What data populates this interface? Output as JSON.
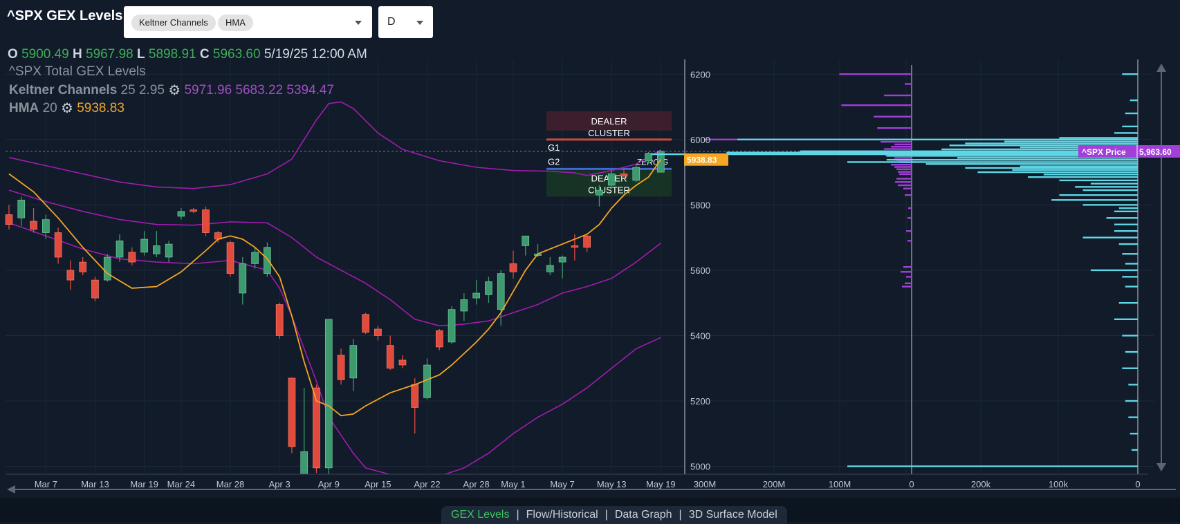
{
  "header": {
    "title": "^SPX GEX Levels",
    "indicators": [
      "Keltner Channels",
      "HMA"
    ],
    "timeframe": "D"
  },
  "ohlc": {
    "o_label": "O",
    "open": "5900.49",
    "h_label": "H",
    "high": "5967.98",
    "l_label": "L",
    "low": "5898.91",
    "c_label": "C",
    "close": "5963.60",
    "datetime": "5/19/25 12:00 AM"
  },
  "legend": {
    "gex_label": "^SPX Total GEX Levels",
    "keltner_label": "Keltner Channels",
    "keltner_params": "25 2.95",
    "keltner_values": "5971.96 5683.22 5394.47",
    "hma_label": "HMA",
    "hma_params": "20",
    "hma_value": "5938.83"
  },
  "tabs": [
    "GEX Levels",
    "Flow/Historical",
    "Data Graph",
    "3D Surface Model"
  ],
  "colors": {
    "background": "#111b2a",
    "up_candle": "#3d9a6e",
    "down_candle": "#e14a3c",
    "keltner": "#a21caf",
    "hma": "#f5a623",
    "gex_purple": "#a23fd8",
    "volume_cyan": "#5fd8e6",
    "price_badge": "#a23fd8"
  },
  "chart_data": {
    "type": "candlestick",
    "y_ticks": [
      5000,
      5200,
      5400,
      5600,
      5800,
      6000,
      6200
    ],
    "ylim": [
      4980,
      6245
    ],
    "x_ticks": [
      "Mar 7",
      "Mar 13",
      "Mar 19",
      "Mar 24",
      "Mar 28",
      "Apr 3",
      "Apr 9",
      "Apr 15",
      "Apr 22",
      "Apr 28",
      "May 1",
      "May 7",
      "May 13",
      "May 19"
    ],
    "x_tick_bars": [
      3,
      7,
      11,
      14,
      18,
      22,
      26,
      30,
      34,
      38,
      41,
      45,
      49,
      53
    ],
    "candles": [
      {
        "o": 5770,
        "h": 5800,
        "l": 5725,
        "c": 5740
      },
      {
        "o": 5760,
        "h": 5825,
        "l": 5735,
        "c": 5815
      },
      {
        "o": 5750,
        "h": 5790,
        "l": 5715,
        "c": 5725
      },
      {
        "o": 5715,
        "h": 5770,
        "l": 5695,
        "c": 5755
      },
      {
        "o": 5715,
        "h": 5730,
        "l": 5620,
        "c": 5640
      },
      {
        "o": 5600,
        "h": 5630,
        "l": 5540,
        "c": 5570
      },
      {
        "o": 5625,
        "h": 5640,
        "l": 5585,
        "c": 5595
      },
      {
        "o": 5570,
        "h": 5580,
        "l": 5505,
        "c": 5515
      },
      {
        "o": 5570,
        "h": 5650,
        "l": 5565,
        "c": 5640
      },
      {
        "o": 5640,
        "h": 5710,
        "l": 5625,
        "c": 5690
      },
      {
        "o": 5655,
        "h": 5670,
        "l": 5615,
        "c": 5625
      },
      {
        "o": 5655,
        "h": 5720,
        "l": 5645,
        "c": 5695
      },
      {
        "o": 5650,
        "h": 5720,
        "l": 5640,
        "c": 5675
      },
      {
        "o": 5640,
        "h": 5690,
        "l": 5625,
        "c": 5680
      },
      {
        "o": 5765,
        "h": 5790,
        "l": 5755,
        "c": 5780
      },
      {
        "o": 5785,
        "h": 5790,
        "l": 5775,
        "c": 5780
      },
      {
        "o": 5785,
        "h": 5795,
        "l": 5705,
        "c": 5715
      },
      {
        "o": 5715,
        "h": 5720,
        "l": 5685,
        "c": 5695
      },
      {
        "o": 5685,
        "h": 5690,
        "l": 5580,
        "c": 5590
      },
      {
        "o": 5530,
        "h": 5640,
        "l": 5495,
        "c": 5620
      },
      {
        "o": 5620,
        "h": 5670,
        "l": 5605,
        "c": 5655
      },
      {
        "o": 5590,
        "h": 5685,
        "l": 5580,
        "c": 5670
      },
      {
        "o": 5495,
        "h": 5500,
        "l": 5390,
        "c": 5400
      },
      {
        "o": 5270,
        "h": 5270,
        "l": 5040,
        "c": 5060
      },
      {
        "o": 4955,
        "h": 5240,
        "l": 4930,
        "c": 5045
      },
      {
        "o": 5240,
        "h": 5250,
        "l": 4980,
        "c": 4995
      },
      {
        "o": 4995,
        "h": 5450,
        "l": 4950,
        "c": 5450
      },
      {
        "o": 5340,
        "h": 5360,
        "l": 5250,
        "c": 5265
      },
      {
        "o": 5270,
        "h": 5390,
        "l": 5230,
        "c": 5370
      },
      {
        "o": 5465,
        "h": 5470,
        "l": 5405,
        "c": 5410
      },
      {
        "o": 5420,
        "h": 5430,
        "l": 5385,
        "c": 5400
      },
      {
        "o": 5370,
        "h": 5400,
        "l": 5295,
        "c": 5300
      },
      {
        "o": 5325,
        "h": 5340,
        "l": 5300,
        "c": 5310
      },
      {
        "o": 5250,
        "h": 5270,
        "l": 5100,
        "c": 5180
      },
      {
        "o": 5210,
        "h": 5330,
        "l": 5205,
        "c": 5310
      },
      {
        "o": 5415,
        "h": 5420,
        "l": 5355,
        "c": 5365
      },
      {
        "o": 5380,
        "h": 5490,
        "l": 5375,
        "c": 5480
      },
      {
        "o": 5475,
        "h": 5530,
        "l": 5445,
        "c": 5510
      },
      {
        "o": 5515,
        "h": 5570,
        "l": 5495,
        "c": 5530
      },
      {
        "o": 5525,
        "h": 5580,
        "l": 5500,
        "c": 5565
      },
      {
        "o": 5480,
        "h": 5600,
        "l": 5430,
        "c": 5590
      },
      {
        "o": 5620,
        "h": 5660,
        "l": 5575,
        "c": 5595
      },
      {
        "o": 5675,
        "h": 5700,
        "l": 5645,
        "c": 5705
      },
      {
        "o": 5645,
        "h": 5680,
        "l": 5640,
        "c": 5650
      },
      {
        "o": 5595,
        "h": 5640,
        "l": 5585,
        "c": 5615
      },
      {
        "o": 5625,
        "h": 5645,
        "l": 5575,
        "c": 5640
      },
      {
        "o": 5675,
        "h": 5710,
        "l": 5630,
        "c": 5670
      },
      {
        "o": 5705,
        "h": 5710,
        "l": 5655,
        "c": 5670
      },
      {
        "o": 5830,
        "h": 5860,
        "l": 5795,
        "c": 5845
      },
      {
        "o": 5860,
        "h": 5905,
        "l": 5850,
        "c": 5895
      },
      {
        "o": 5895,
        "h": 5910,
        "l": 5880,
        "c": 5888
      },
      {
        "o": 5875,
        "h": 5925,
        "l": 5870,
        "c": 5915
      },
      {
        "o": 5935,
        "h": 5962,
        "l": 5925,
        "c": 5958
      },
      {
        "o": 5900,
        "h": 5968,
        "l": 5899,
        "c": 5964
      }
    ],
    "keltner_upper": [
      [
        0,
        5945
      ],
      [
        3,
        5920
      ],
      [
        6,
        5895
      ],
      [
        9,
        5870
      ],
      [
        12,
        5855
      ],
      [
        15,
        5850
      ],
      [
        18,
        5862
      ],
      [
        21,
        5895
      ],
      [
        23,
        5940
      ],
      [
        24,
        6000
      ],
      [
        25,
        6060
      ],
      [
        26,
        6110
      ],
      [
        27,
        6115
      ],
      [
        28,
        6095
      ],
      [
        30,
        6020
      ],
      [
        32,
        5970
      ],
      [
        35,
        5935
      ],
      [
        38,
        5915
      ],
      [
        41,
        5905
      ],
      [
        44,
        5903
      ],
      [
        46,
        5898
      ],
      [
        47,
        5890
      ],
      [
        49,
        5905
      ],
      [
        51,
        5925
      ],
      [
        53,
        5968
      ]
    ],
    "keltner_middle": [
      [
        0,
        5845
      ],
      [
        3,
        5810
      ],
      [
        6,
        5780
      ],
      [
        9,
        5755
      ],
      [
        12,
        5740
      ],
      [
        15,
        5738
      ],
      [
        18,
        5748
      ],
      [
        21,
        5745
      ],
      [
        23,
        5700
      ],
      [
        25,
        5640
      ],
      [
        27,
        5600
      ],
      [
        29,
        5560
      ],
      [
        31,
        5510
      ],
      [
        33,
        5450
      ],
      [
        35,
        5430
      ],
      [
        37,
        5435
      ],
      [
        39,
        5445
      ],
      [
        41,
        5470
      ],
      [
        43,
        5495
      ],
      [
        45,
        5530
      ],
      [
        47,
        5550
      ],
      [
        49,
        5575
      ],
      [
        51,
        5625
      ],
      [
        53,
        5683
      ]
    ],
    "keltner_lower": [
      [
        0,
        5745
      ],
      [
        3,
        5705
      ],
      [
        6,
        5665
      ],
      [
        9,
        5635
      ],
      [
        12,
        5625
      ],
      [
        15,
        5620
      ],
      [
        18,
        5630
      ],
      [
        21,
        5600
      ],
      [
        22,
        5545
      ],
      [
        23,
        5460
      ],
      [
        24,
        5360
      ],
      [
        25,
        5260
      ],
      [
        26,
        5150
      ],
      [
        27,
        5095
      ],
      [
        28,
        5040
      ],
      [
        29,
        4995
      ],
      [
        31,
        4975
      ],
      [
        33,
        4950
      ],
      [
        35,
        4970
      ],
      [
        37,
        4995
      ],
      [
        39,
        5040
      ],
      [
        41,
        5100
      ],
      [
        43,
        5150
      ],
      [
        45,
        5190
      ],
      [
        47,
        5240
      ],
      [
        49,
        5300
      ],
      [
        51,
        5360
      ],
      [
        53,
        5394
      ]
    ],
    "hma": [
      [
        0,
        5895
      ],
      [
        2,
        5840
      ],
      [
        4,
        5760
      ],
      [
        6,
        5670
      ],
      [
        8,
        5590
      ],
      [
        10,
        5545
      ],
      [
        12,
        5550
      ],
      [
        14,
        5595
      ],
      [
        16,
        5660
      ],
      [
        17,
        5695
      ],
      [
        18,
        5705
      ],
      [
        19,
        5695
      ],
      [
        20,
        5670
      ],
      [
        21,
        5635
      ],
      [
        22,
        5580
      ],
      [
        23,
        5460
      ],
      [
        24,
        5320
      ],
      [
        25,
        5200
      ],
      [
        26,
        5185
      ],
      [
        27,
        5155
      ],
      [
        28,
        5160
      ],
      [
        29,
        5185
      ],
      [
        31,
        5225
      ],
      [
        33,
        5250
      ],
      [
        35,
        5280
      ],
      [
        36,
        5310
      ],
      [
        37,
        5345
      ],
      [
        38,
        5380
      ],
      [
        39,
        5420
      ],
      [
        40,
        5470
      ],
      [
        41,
        5535
      ],
      [
        42,
        5600
      ],
      [
        43,
        5650
      ],
      [
        45,
        5680
      ],
      [
        47,
        5710
      ],
      [
        48,
        5740
      ],
      [
        49,
        5790
      ],
      [
        50,
        5830
      ],
      [
        51,
        5860
      ],
      [
        52,
        5885
      ],
      [
        53,
        5939
      ]
    ],
    "gex_bars_left": [
      [
        6200,
        105
      ],
      [
        6170,
        10
      ],
      [
        6135,
        40
      ],
      [
        6105,
        102
      ],
      [
        6070,
        55
      ],
      [
        6035,
        50
      ],
      [
        6000,
        300
      ],
      [
        5993,
        45
      ],
      [
        5985,
        25
      ],
      [
        5978,
        30
      ],
      [
        5971,
        40
      ],
      [
        5964,
        160
      ],
      [
        5958,
        65
      ],
      [
        5951,
        38
      ],
      [
        5944,
        25
      ],
      [
        5937,
        22
      ],
      [
        5930,
        18
      ],
      [
        5923,
        30
      ],
      [
        5916,
        25
      ],
      [
        5909,
        22
      ],
      [
        5901,
        20
      ],
      [
        5894,
        18
      ],
      [
        5880,
        22
      ],
      [
        5870,
        24
      ],
      [
        5860,
        20
      ],
      [
        5850,
        12
      ],
      [
        5830,
        10
      ],
      [
        5790,
        5
      ],
      [
        5760,
        6
      ],
      [
        5720,
        8
      ],
      [
        5690,
        6
      ],
      [
        5610,
        12
      ],
      [
        5595,
        16
      ],
      [
        5580,
        8
      ],
      [
        5560,
        10
      ],
      [
        5550,
        14
      ]
    ],
    "volume_bars_right": [
      [
        6200,
        10
      ],
      [
        6120,
        5
      ],
      [
        6080,
        8
      ],
      [
        6040,
        10
      ],
      [
        6020,
        15
      ],
      [
        6005,
        50
      ],
      [
        6000,
        255
      ],
      [
        5994,
        85
      ],
      [
        5988,
        110
      ],
      [
        5982,
        120
      ],
      [
        5976,
        75
      ],
      [
        5970,
        125
      ],
      [
        5964,
        215
      ],
      [
        5960,
        262
      ],
      [
        5955,
        310
      ],
      [
        5950,
        160
      ],
      [
        5944,
        115
      ],
      [
        5938,
        160
      ],
      [
        5931,
        185
      ],
      [
        5925,
        135
      ],
      [
        5918,
        75
      ],
      [
        5913,
        110
      ],
      [
        5907,
        80
      ],
      [
        5900,
        102
      ],
      [
        5893,
        60
      ],
      [
        5885,
        70
      ],
      [
        5875,
        50
      ],
      [
        5865,
        30
      ],
      [
        5855,
        40
      ],
      [
        5845,
        35
      ],
      [
        5830,
        50
      ],
      [
        5815,
        55
      ],
      [
        5800,
        35
      ],
      [
        5790,
        12
      ],
      [
        5780,
        15
      ],
      [
        5760,
        20
      ],
      [
        5740,
        15
      ],
      [
        5720,
        15
      ],
      [
        5700,
        35
      ],
      [
        5680,
        12
      ],
      [
        5650,
        10
      ],
      [
        5620,
        8
      ],
      [
        5600,
        30
      ],
      [
        5580,
        10
      ],
      [
        5550,
        8
      ],
      [
        5500,
        12
      ],
      [
        5450,
        15
      ],
      [
        5400,
        10
      ],
      [
        5350,
        8
      ],
      [
        5300,
        10
      ],
      [
        5250,
        6
      ],
      [
        5200,
        8
      ],
      [
        5150,
        6
      ],
      [
        5100,
        5
      ],
      [
        5050,
        4
      ],
      [
        5000,
        185
      ]
    ],
    "x_ticks_gex": [
      "300M",
      "200M",
      "100M",
      "0"
    ],
    "x_ticks_volume": [
      "200k",
      "100k",
      "0"
    ],
    "annotations": {
      "dealer_cluster_top": "DEALER\nCLUSTER",
      "dealer_cluster_bottom": "DEALER\nCLUSTER",
      "g1": "G1",
      "g2": "G2",
      "zero_g": "ZERO G",
      "hma_tag": "5938.83",
      "price_tag_label": "^SPX Price",
      "price_tag_value": "5,963.60"
    },
    "current_price": 5963.6,
    "g1_level": 6000,
    "g2_level": 5910
  }
}
